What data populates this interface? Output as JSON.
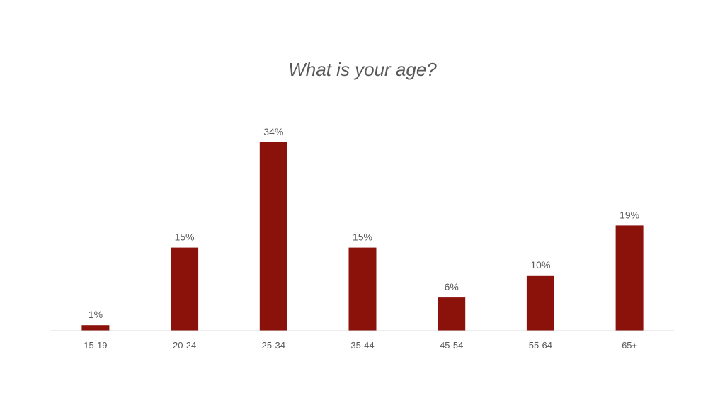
{
  "chart_data": {
    "type": "bar",
    "title": "What is your age?",
    "categories": [
      "15-19",
      "20-24",
      "25-34",
      "35-44",
      "45-54",
      "55-64",
      "65+"
    ],
    "values": [
      1,
      15,
      34,
      15,
      6,
      10,
      19
    ],
    "data_labels": [
      "1%",
      "15%",
      "34%",
      "15%",
      "6%",
      "10%",
      "19%"
    ],
    "value_unit": "%",
    "ylim": [
      0,
      34
    ],
    "grid": false,
    "legend": "none",
    "colors": {
      "bar": "#8B120A",
      "axis": "#D9D9D9",
      "text": "#595959"
    }
  }
}
